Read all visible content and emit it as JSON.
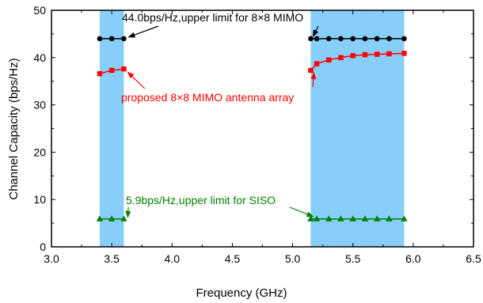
{
  "chart_data": {
    "type": "line",
    "title": "",
    "xlabel": "Frequency (GHz)",
    "ylabel": "Channel Capacity (bps/Hz)",
    "xlim": [
      3.0,
      6.5
    ],
    "ylim": [
      0,
      50
    ],
    "xticks": [
      3.0,
      3.5,
      4.0,
      4.5,
      5.0,
      5.5,
      6.0,
      6.5
    ],
    "xtick_labels": [
      "3.0",
      "3.5",
      "4.0",
      "4.5",
      "5.0",
      "5.5",
      "6.0",
      "6.5"
    ],
    "yticks": [
      0,
      10,
      20,
      30,
      40,
      50
    ],
    "ytick_labels": [
      "0",
      "10",
      "20",
      "30",
      "40",
      "50"
    ],
    "grid": false,
    "legend": "none",
    "shaded_bands": [
      {
        "x0": 3.4,
        "x1": 3.6,
        "color": "#87cefa"
      },
      {
        "x0": 5.15,
        "x1": 5.925,
        "color": "#87cefa"
      }
    ],
    "series": [
      {
        "color": "#000000",
        "marker": "circle",
        "segments": [
          {
            "x": [
              3.4,
              3.5,
              3.6
            ],
            "y": [
              44.0,
              44.0,
              44.0
            ]
          },
          {
            "x": [
              5.15,
              5.2,
              5.3,
              5.4,
              5.5,
              5.6,
              5.7,
              5.8,
              5.925
            ],
            "y": [
              44.0,
              44.0,
              44.0,
              44.0,
              44.0,
              44.0,
              44.0,
              44.0,
              44.0
            ]
          }
        ]
      },
      {
        "color": "#ff0000",
        "marker": "square",
        "segments": [
          {
            "x": [
              3.4,
              3.5,
              3.6
            ],
            "y": [
              36.6,
              37.3,
              37.6
            ]
          },
          {
            "x": [
              5.15,
              5.2,
              5.3,
              5.4,
              5.5,
              5.6,
              5.7,
              5.8,
              5.925
            ],
            "y": [
              37.3,
              38.7,
              39.5,
              40.0,
              40.4,
              40.6,
              40.7,
              40.8,
              40.9
            ]
          }
        ]
      },
      {
        "color": "#008000",
        "marker": "triangle",
        "segments": [
          {
            "x": [
              3.4,
              3.5,
              3.6
            ],
            "y": [
              5.9,
              5.9,
              5.9
            ]
          },
          {
            "x": [
              5.15,
              5.2,
              5.3,
              5.4,
              5.5,
              5.6,
              5.7,
              5.8,
              5.925
            ],
            "y": [
              5.9,
              5.9,
              5.9,
              5.9,
              5.9,
              5.9,
              5.9,
              5.9,
              5.9
            ]
          }
        ]
      }
    ],
    "annotations": [
      {
        "text": "44.0bps/Hz,upper limit for 8×8 MIMO",
        "color": "#000000",
        "at": [
          3.6,
          44.0
        ]
      },
      {
        "text": "proposed 8×8 MIMO antenna array",
        "color": "#ff0000",
        "at": [
          3.6,
          37.6
        ]
      },
      {
        "text": "5.9bps/Hz,upper limit for SISO",
        "color": "#008000",
        "at": [
          3.6,
          5.9
        ]
      }
    ]
  }
}
